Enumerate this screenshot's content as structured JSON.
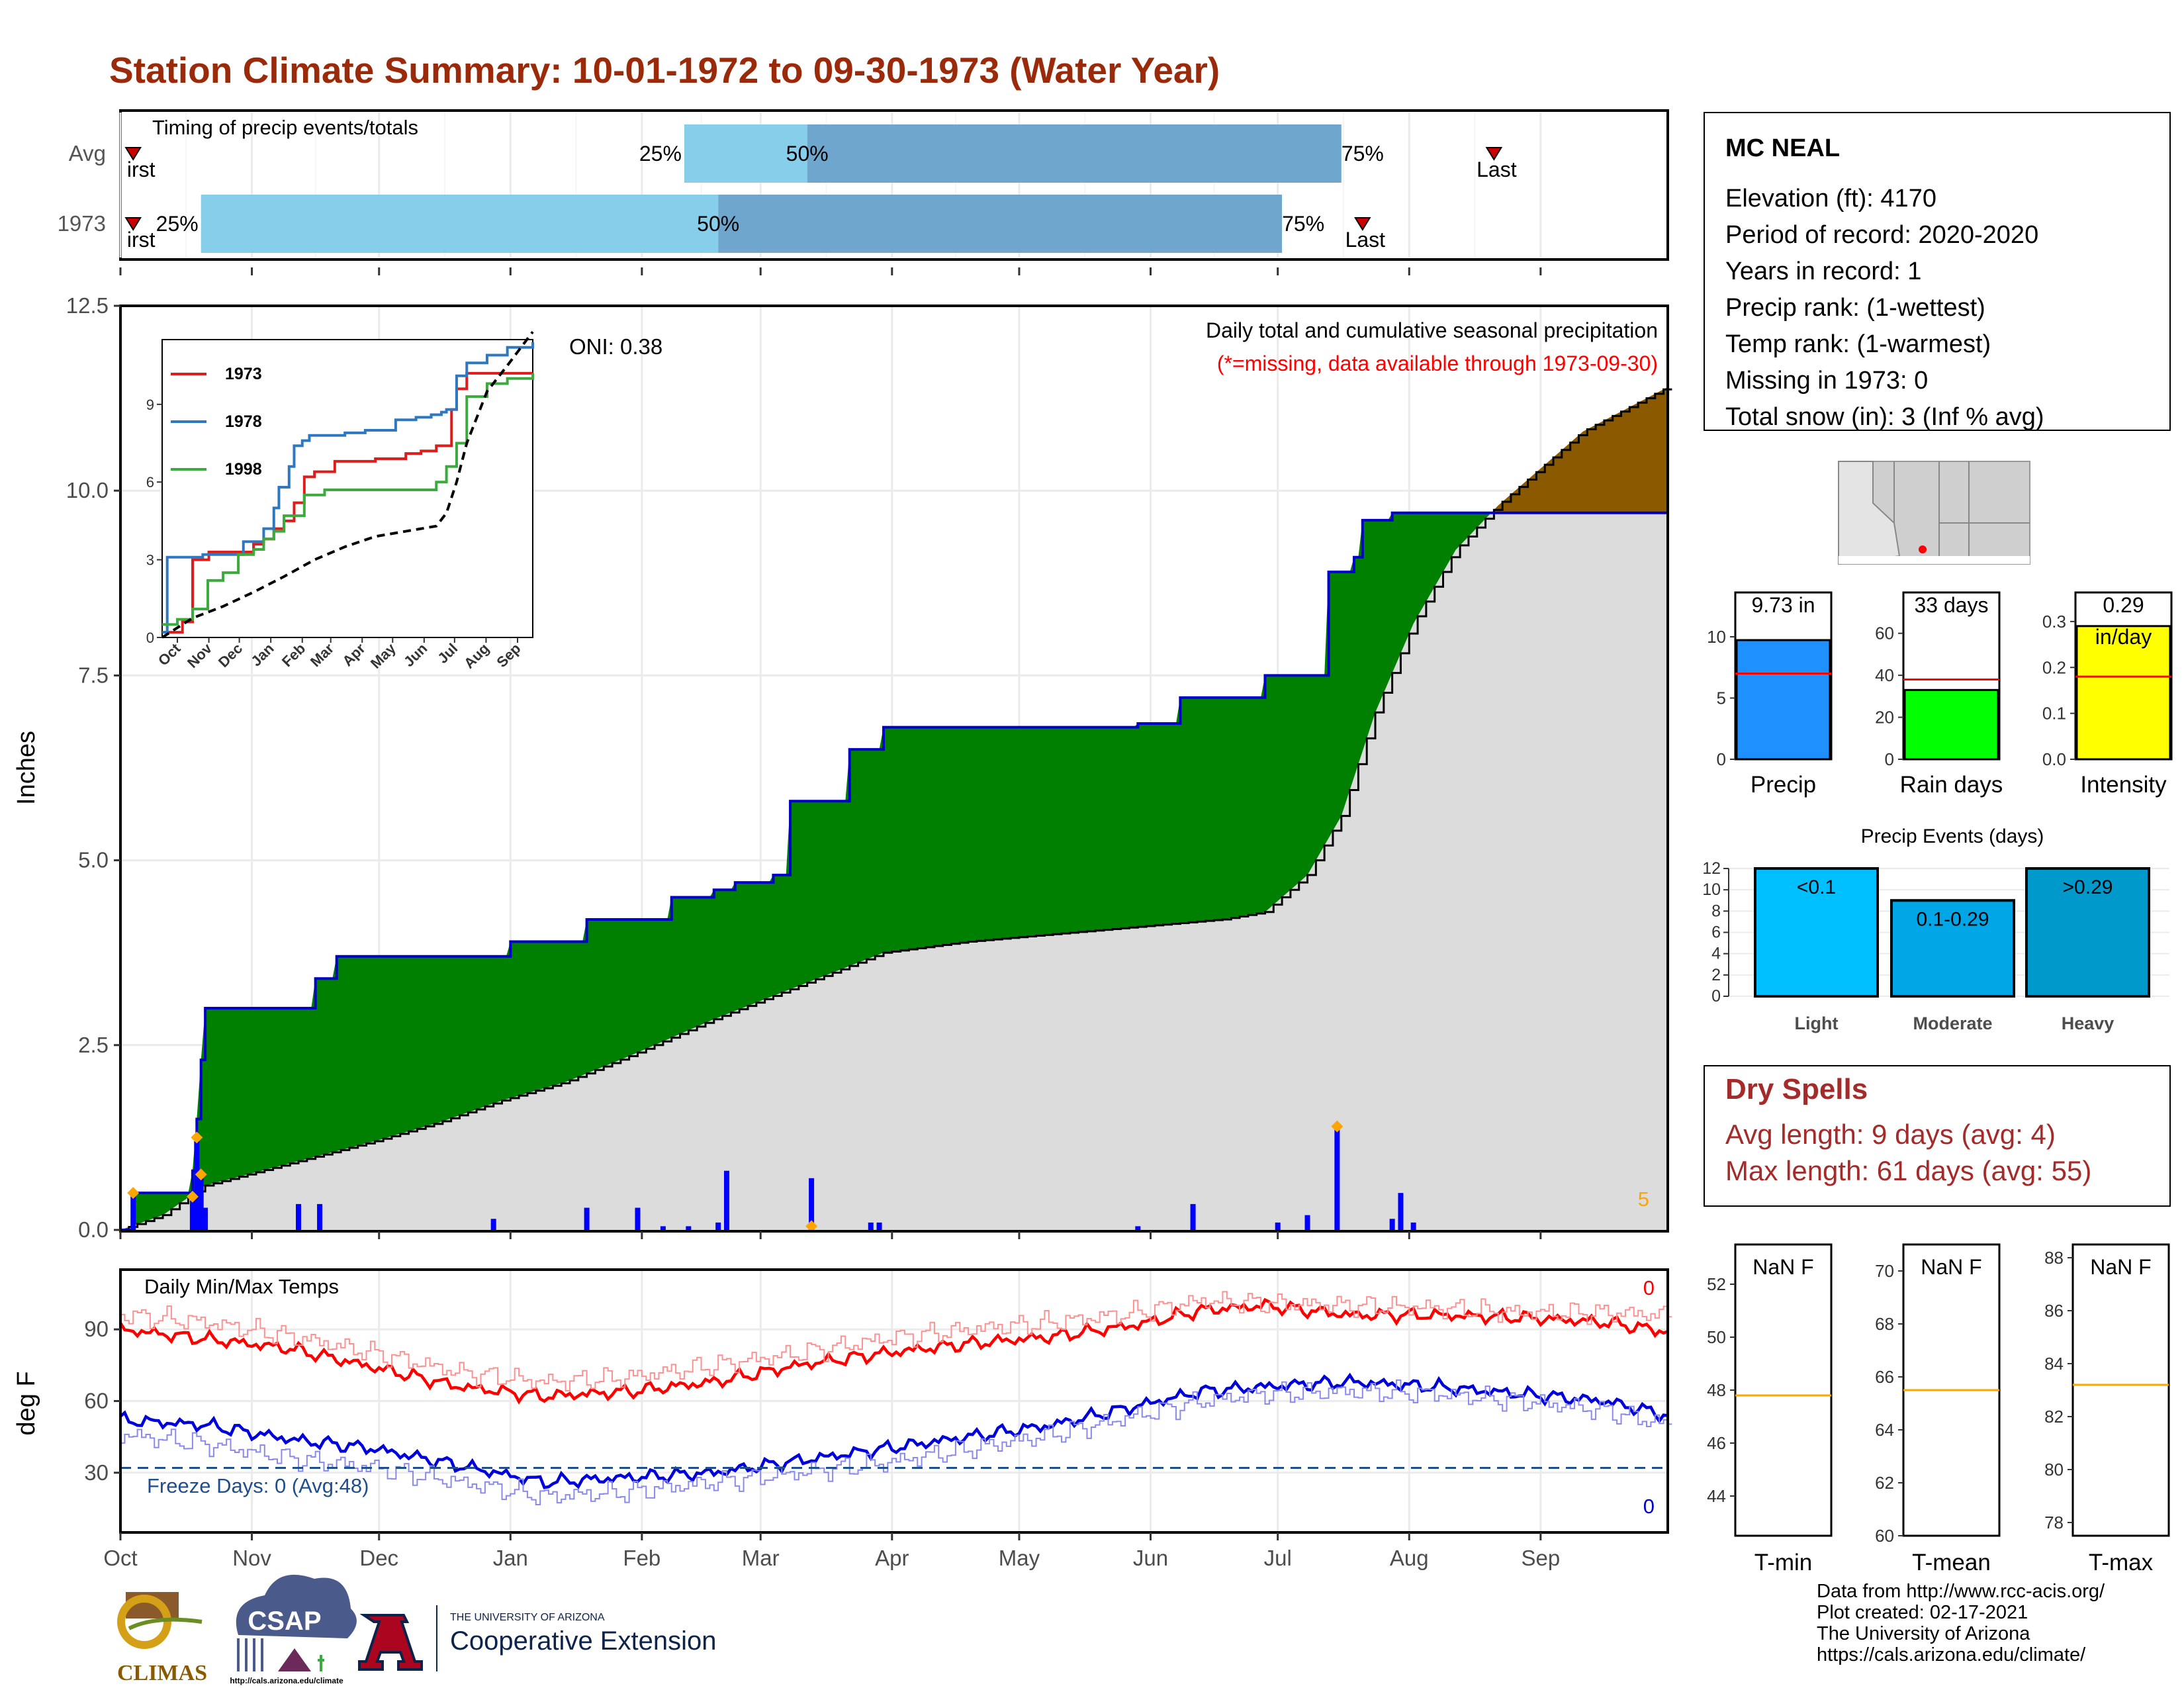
{
  "title": "Station Climate Summary: 10-01-1972 to 09-30-1973 (Water Year)",
  "months": [
    "Oct",
    "Nov",
    "Dec",
    "Jan",
    "Feb",
    "Mar",
    "Apr",
    "May",
    "Jun",
    "Jul",
    "Aug",
    "Sep"
  ],
  "timing_panel": {
    "heading": "Timing of precip events/totals",
    "rows": [
      {
        "label": "Avg",
        "p25_label": "25%",
        "p50_label": "50%",
        "p75_label": "75%",
        "first_label": "irst",
        "last_label": "Last",
        "first_day": 3,
        "p25_day": 133,
        "p50_day": 162,
        "p75_day": 288,
        "last_day": 324
      },
      {
        "label": "1973",
        "p25_label": "25%",
        "p50_label": "50%",
        "p75_label": "75%",
        "first_label": "irst",
        "last_label": "Last",
        "first_day": 3,
        "p25_day": 19,
        "p50_day": 141,
        "p75_day": 274,
        "last_day": 293
      }
    ],
    "colors": {
      "early": "#87ceeb",
      "late": "#6ea6cd",
      "marker": "#cc0000"
    }
  },
  "chart_data": {
    "type": "area",
    "title": "Daily total and cumulative seasonal precipitation",
    "subtitle": "(*=missing, data available through 1973-09-30)",
    "oni_label": "ONI: 0.38",
    "ylabel": "Inches",
    "ylim": [
      0,
      12.5
    ],
    "yticks": [
      "0.0",
      "2.5",
      "5.0",
      "7.5",
      "10.0",
      "12.5"
    ],
    "corner_note": "5",
    "series": [
      {
        "name": "1973 cumulative",
        "days": [
          0,
          3,
          17,
          18,
          19,
          20,
          46,
          51,
          92,
          110,
          130,
          140,
          145,
          154,
          158,
          160,
          172,
          180,
          220,
          240,
          250,
          270,
          285,
          286,
          291,
          293,
          300,
          365
        ],
        "values": [
          0.0,
          0.5,
          0.8,
          1.5,
          2.3,
          3.0,
          3.4,
          3.7,
          3.9,
          4.2,
          4.5,
          4.6,
          4.7,
          4.8,
          5.8,
          5.8,
          6.5,
          6.8,
          6.8,
          6.85,
          7.2,
          7.5,
          8.9,
          8.9,
          9.1,
          9.6,
          9.7,
          9.7
        ]
      },
      {
        "name": "Average cumulative",
        "days": [
          0,
          10,
          20,
          30,
          40,
          50,
          60,
          75,
          90,
          105,
          120,
          140,
          160,
          180,
          200,
          220,
          240,
          260,
          270,
          280,
          288,
          296,
          305,
          315,
          325,
          335,
          345,
          355,
          365
        ],
        "values": [
          0.0,
          0.2,
          0.6,
          0.75,
          0.9,
          1.05,
          1.2,
          1.45,
          1.75,
          2.0,
          2.35,
          2.85,
          3.3,
          3.75,
          3.9,
          4.0,
          4.1,
          4.2,
          4.3,
          4.8,
          5.6,
          7.0,
          8.2,
          9.2,
          9.8,
          10.3,
          10.8,
          11.1,
          11.4
        ]
      }
    ],
    "daily_bars": [
      {
        "day": 3,
        "value": 0.5
      },
      {
        "day": 17,
        "value": 0.4
      },
      {
        "day": 18,
        "value": 1.2
      },
      {
        "day": 19,
        "value": 0.7
      },
      {
        "day": 20,
        "value": 0.3
      },
      {
        "day": 42,
        "value": 0.35
      },
      {
        "day": 47,
        "value": 0.35
      },
      {
        "day": 88,
        "value": 0.15
      },
      {
        "day": 110,
        "value": 0.3
      },
      {
        "day": 122,
        "value": 0.3
      },
      {
        "day": 128,
        "value": 0.05
      },
      {
        "day": 134,
        "value": 0.05
      },
      {
        "day": 141,
        "value": 0.1
      },
      {
        "day": 143,
        "value": 0.8
      },
      {
        "day": 163,
        "value": 0.7
      },
      {
        "day": 177,
        "value": 0.1
      },
      {
        "day": 179,
        "value": 0.1
      },
      {
        "day": 240,
        "value": 0.05
      },
      {
        "day": 253,
        "value": 0.35
      },
      {
        "day": 273,
        "value": 0.1
      },
      {
        "day": 280,
        "value": 0.2
      },
      {
        "day": 287,
        "value": 1.4
      },
      {
        "day": 300,
        "value": 0.15
      },
      {
        "day": 302,
        "value": 0.5
      },
      {
        "day": 305,
        "value": 0.1
      }
    ],
    "markers": [
      {
        "day": 3,
        "value": 0.5
      },
      {
        "day": 17,
        "value": 0.45
      },
      {
        "day": 18,
        "value": 1.25
      },
      {
        "day": 19,
        "value": 0.75
      },
      {
        "day": 163,
        "value": 0.05
      },
      {
        "day": 287,
        "value": 1.4
      }
    ],
    "colors": {
      "surplus": "#008000",
      "deficit": "#8b5a00",
      "average": "#dcdcdc",
      "line": "#0000cc",
      "bars": "#0000ff",
      "marker": "#ffa500"
    }
  },
  "inset": {
    "type": "line",
    "yticks": [
      "0",
      "3",
      "6",
      "9"
    ],
    "ylim": [
      0,
      11.5
    ],
    "months": [
      "Oct",
      "Nov",
      "Dec",
      "Jan",
      "Feb",
      "Mar",
      "Apr",
      "May",
      "Jun",
      "Jul",
      "Aug",
      "Sep"
    ],
    "series": [
      {
        "name": "1973",
        "color": "#dd1c1c",
        "days": [
          0,
          20,
          30,
          46,
          60,
          90,
          100,
          110,
          120,
          130,
          140,
          150,
          160,
          170,
          180,
          210,
          240,
          255,
          270,
          285,
          290,
          300,
          365
        ],
        "values": [
          0.2,
          0.6,
          3.0,
          3.3,
          3.3,
          3.6,
          3.8,
          4.2,
          4.5,
          5.2,
          6.2,
          6.4,
          6.4,
          6.8,
          6.8,
          6.9,
          7.1,
          7.2,
          7.4,
          8.8,
          9.6,
          10.2,
          10.2
        ]
      },
      {
        "name": "1978",
        "color": "#2e78c2",
        "days": [
          0,
          5,
          25,
          40,
          80,
          100,
          110,
          115,
          125,
          130,
          138,
          145,
          165,
          180,
          200,
          230,
          250,
          265,
          275,
          280,
          290,
          300,
          320,
          340,
          365
        ],
        "values": [
          0.2,
          3.1,
          3.1,
          3.2,
          3.7,
          4.2,
          5.0,
          5.8,
          6.6,
          7.4,
          7.6,
          7.8,
          7.8,
          7.9,
          8.0,
          8.4,
          8.5,
          8.6,
          8.7,
          8.8,
          10.1,
          10.6,
          10.9,
          11.2,
          11.4
        ]
      },
      {
        "name": "1998",
        "color": "#3caa3c",
        "days": [
          0,
          15,
          30,
          45,
          60,
          75,
          90,
          100,
          110,
          120,
          140,
          160,
          170,
          200,
          240,
          270,
          280,
          290,
          300,
          320,
          340,
          365
        ],
        "values": [
          0.5,
          0.7,
          1.1,
          2.2,
          2.5,
          3.2,
          3.4,
          3.8,
          4.1,
          4.7,
          5.5,
          5.7,
          5.7,
          5.7,
          5.7,
          6.0,
          6.6,
          7.5,
          9.3,
          9.8,
          10.0,
          10.2
        ]
      },
      {
        "name": "Average",
        "color": "#000000",
        "dashed": true,
        "days": [
          0,
          30,
          60,
          90,
          120,
          150,
          180,
          210,
          240,
          270,
          280,
          290,
          300,
          320,
          340,
          365
        ],
        "values": [
          0.0,
          0.75,
          1.2,
          1.75,
          2.35,
          3.0,
          3.5,
          3.9,
          4.1,
          4.3,
          4.8,
          6.0,
          7.5,
          9.5,
          10.5,
          11.8
        ]
      }
    ]
  },
  "temps_panel": {
    "heading": "Daily Min/Max Temps",
    "ylabel": "deg F",
    "ylim": [
      5,
      115
    ],
    "yticks": [
      "30",
      "60",
      "90"
    ],
    "freeze_label": "Freeze Days: 0 (Avg:48)",
    "freeze_line": 32,
    "count_high": "0",
    "count_low": "0",
    "series": [
      {
        "name": "Max temp 1973",
        "color": "#ff0000",
        "days": [
          0,
          20,
          40,
          60,
          80,
          100,
          120,
          140,
          160,
          180,
          200,
          220,
          240,
          255,
          270,
          290,
          310,
          330,
          350,
          365
        ],
        "values": [
          90,
          86,
          82,
          74,
          66,
          62,
          64,
          68,
          75,
          80,
          84,
          87,
          92,
          98,
          100,
          96,
          96,
          95,
          93,
          89
        ]
      },
      {
        "name": "Avg max",
        "color": "#ff9090",
        "days": [
          0,
          20,
          40,
          60,
          80,
          100,
          120,
          140,
          160,
          180,
          200,
          220,
          240,
          255,
          270,
          290,
          310,
          330,
          350,
          365
        ],
        "values": [
          96,
          93,
          87,
          80,
          72,
          68,
          70,
          75,
          80,
          86,
          90,
          93,
          97,
          102,
          101,
          100,
          99,
          97,
          97,
          96
        ]
      },
      {
        "name": "Min temp 1973",
        "color": "#0000dd",
        "days": [
          0,
          20,
          40,
          60,
          80,
          100,
          120,
          140,
          160,
          180,
          200,
          220,
          240,
          255,
          270,
          290,
          310,
          330,
          350,
          365
        ],
        "values": [
          52,
          50,
          44,
          40,
          33,
          26,
          28,
          30,
          35,
          40,
          45,
          50,
          58,
          64,
          66,
          68,
          66,
          63,
          60,
          54
        ]
      },
      {
        "name": "Avg min",
        "color": "#8a8aee",
        "days": [
          0,
          20,
          40,
          60,
          80,
          100,
          120,
          140,
          160,
          180,
          200,
          220,
          240,
          255,
          270,
          290,
          310,
          330,
          350,
          365
        ],
        "values": [
          46,
          42,
          36,
          32,
          26,
          20,
          22,
          26,
          30,
          34,
          40,
          46,
          54,
          60,
          63,
          64,
          63,
          60,
          56,
          50
        ]
      }
    ]
  },
  "station": {
    "name": "MC NEAL",
    "lines": [
      "Elevation (ft): 4170",
      "Period of record: 2020-2020",
      "Years in record: 1",
      "Precip rank:  (1-wettest)",
      "Temp rank:  (1-warmest)",
      "Missing in 1973: 0",
      "Total snow (in): 3 (Inf % avg)"
    ]
  },
  "mini_bars": [
    {
      "label": "Precip",
      "value_label": "9.73 in",
      "value": 9.73,
      "avg": 7.0,
      "ylim": [
        0,
        12
      ],
      "ticks": [
        "0",
        "5",
        "10"
      ],
      "tick_values": [
        0,
        5,
        10
      ],
      "color": "#1e90ff"
    },
    {
      "label": "Rain days",
      "value_label": "33 days",
      "value": 33,
      "avg": 38,
      "ylim": [
        0,
        70
      ],
      "ticks": [
        "0",
        "20",
        "40",
        "60"
      ],
      "tick_values": [
        0,
        20,
        40,
        60
      ],
      "color": "#00ff00"
    },
    {
      "label": "Intensity",
      "value_label": "0.29",
      "value_label2": "in/day",
      "value": 0.29,
      "avg": 0.18,
      "ylim": [
        0,
        0.32
      ],
      "ticks": [
        "0.0",
        "0.1",
        "0.2",
        "0.3"
      ],
      "tick_values": [
        0.0,
        0.1,
        0.2,
        0.3
      ],
      "color": "#ffff00"
    }
  ],
  "events": {
    "heading": "Precip Events (days)",
    "ylim": [
      0,
      12
    ],
    "ticks": [
      "0",
      "2",
      "4",
      "6",
      "8",
      "10",
      "12"
    ],
    "tick_values": [
      0,
      2,
      4,
      6,
      8,
      10,
      12
    ],
    "bars": [
      {
        "category": "Light",
        "label": "<0.1",
        "value": 12,
        "color": "#00bfff"
      },
      {
        "category": "Moderate",
        "label": "0.1-0.29",
        "value": 9,
        "color": "#00a6e6"
      },
      {
        "category": "Heavy",
        "label": ">0.29",
        "value": 12,
        "color": "#0099cc"
      }
    ]
  },
  "dry_spells": {
    "heading": "Dry Spells",
    "avg_line": "Avg length: 9 days (avg: 4)",
    "max_line": "Max length: 61 days (avg: 55)",
    "color": "#a52a2a"
  },
  "temp_boxes": [
    {
      "label": "T-min",
      "value_label": "NaN F",
      "avg": 47.8,
      "ylim": [
        42.5,
        53.5
      ],
      "ticks": [
        "44",
        "46",
        "48",
        "50",
        "52"
      ],
      "tick_values": [
        44,
        46,
        48,
        50,
        52
      ]
    },
    {
      "label": "T-mean",
      "value_label": "NaN F",
      "avg": 65.5,
      "ylim": [
        60,
        71
      ],
      "ticks": [
        "60",
        "62",
        "64",
        "66",
        "68",
        "70"
      ],
      "tick_values": [
        60,
        62,
        64,
        66,
        68,
        70
      ]
    },
    {
      "label": "T-max",
      "value_label": "NaN F",
      "avg": 83.2,
      "ylim": [
        77.5,
        88.5
      ],
      "ticks": [
        "78",
        "80",
        "82",
        "84",
        "86",
        "88"
      ],
      "tick_values": [
        78,
        80,
        82,
        84,
        86,
        88
      ]
    }
  ],
  "logos": {
    "climas": "CLIMAS",
    "csap": "CSAP",
    "csap_url": "http://cals.arizona.edu/climate",
    "ua_small": "THE UNIVERSITY OF ARIZONA",
    "ua_big": "Cooperative Extension"
  },
  "footer": [
    "Data from http://www.rcc-acis.org/",
    "Plot created: 02-17-2021",
    "The University of Arizona",
    "https://cals.arizona.edu/climate/"
  ]
}
